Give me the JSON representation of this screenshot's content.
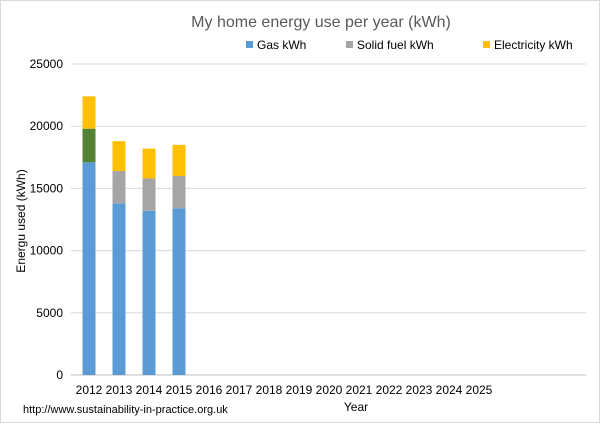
{
  "chart_data": {
    "type": "bar",
    "stacked": true,
    "title": "My home energy use per year (kWh)",
    "xlabel": "Year",
    "ylabel": "Energu used (kWh)",
    "ylim": [
      0,
      25000
    ],
    "yticks": [
      0,
      5000,
      10000,
      15000,
      20000,
      25000
    ],
    "grid": true,
    "legend_position": "top",
    "categories": [
      "2012",
      "2013",
      "2014",
      "2015",
      "2016",
      "2017",
      "2018",
      "2019",
      "2020",
      "2021",
      "2022",
      "2023",
      "2024",
      "2025"
    ],
    "series": [
      {
        "name": "Gas kWh",
        "color": "#5b9bd5",
        "values": [
          17100,
          13800,
          13200,
          13400,
          null,
          null,
          null,
          null,
          null,
          null,
          null,
          null,
          null,
          null
        ]
      },
      {
        "name": "Solid fuel kWh",
        "color": "#a5a5a5",
        "values": [
          2700,
          2600,
          2600,
          2600,
          null,
          null,
          null,
          null,
          null,
          null,
          null,
          null,
          null,
          null
        ],
        "bar_colors": [
          "#548235",
          "#a5a5a5",
          "#a5a5a5",
          "#a5a5a5"
        ]
      },
      {
        "name": "Electricity kWh",
        "color": "#ffc000",
        "values": [
          2600,
          2400,
          2400,
          2500,
          null,
          null,
          null,
          null,
          null,
          null,
          null,
          null,
          null,
          null
        ]
      }
    ]
  },
  "footer": {
    "source_text": "http://www.sustainability-in-practice.org.uk"
  }
}
